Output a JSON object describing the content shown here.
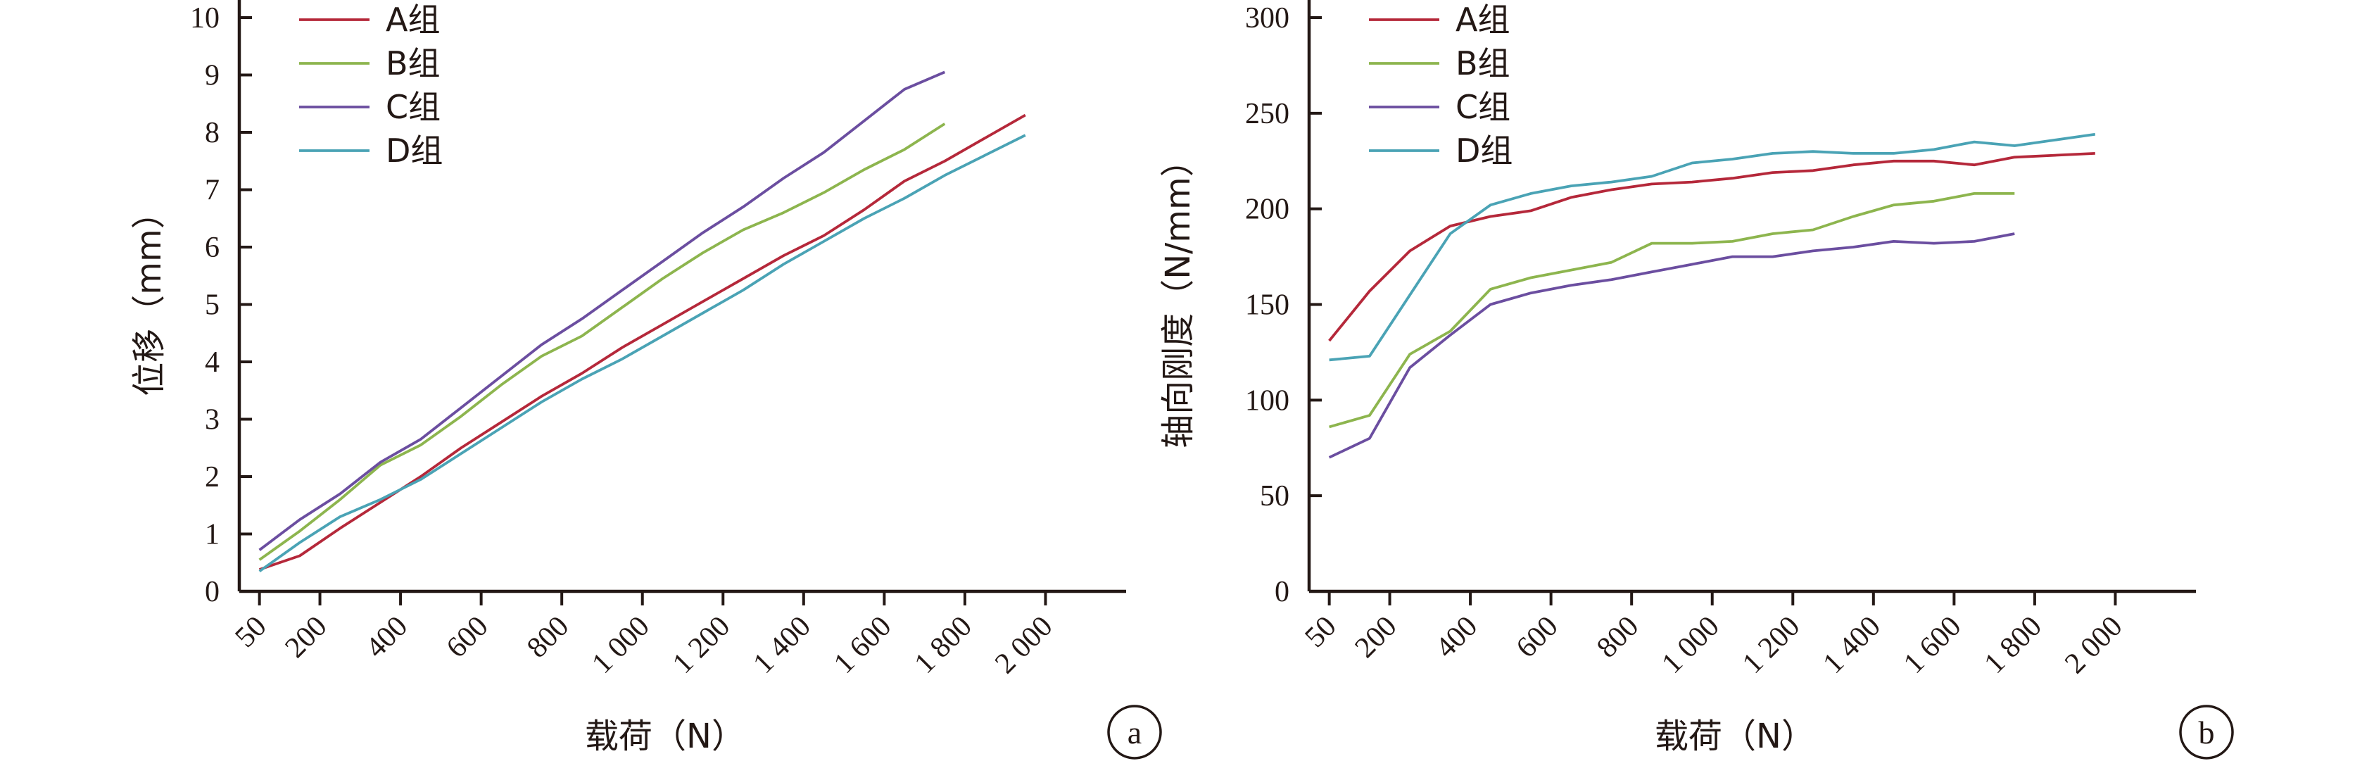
{
  "chart_data": [
    {
      "type": "line",
      "panel_label": "a",
      "xlabel": "载荷（N）",
      "ylabel": "位移（mm）",
      "x": [
        50,
        150,
        250,
        350,
        450,
        550,
        650,
        750,
        850,
        950,
        1050,
        1150,
        1250,
        1350,
        1450,
        1550,
        1650,
        1750,
        1850,
        1950
      ],
      "x_ticks": [
        50,
        200,
        400,
        600,
        800,
        1000,
        1200,
        1400,
        1600,
        1800,
        2000
      ],
      "x_tick_labels": [
        "50",
        "200",
        "400",
        "600",
        "800",
        "1 000",
        "1 200",
        "1 400",
        "1 600",
        "1 800",
        "2 000"
      ],
      "xlim": [
        0,
        2200
      ],
      "ylim": [
        0,
        10
      ],
      "y_ticks": [
        0,
        1,
        2,
        3,
        4,
        5,
        6,
        7,
        8,
        9,
        10
      ],
      "y_tick_labels": [
        "0",
        "1",
        "2",
        "3",
        "4",
        "5",
        "6",
        "7",
        "8",
        "9",
        "10"
      ],
      "legend_position": "top-left",
      "series": [
        {
          "name": "A组",
          "color": "#b5283a",
          "values": [
            0.38,
            0.62,
            1.1,
            1.55,
            2.0,
            2.5,
            2.95,
            3.4,
            3.8,
            4.25,
            4.65,
            5.05,
            5.45,
            5.85,
            6.2,
            6.65,
            7.15,
            7.5,
            7.9,
            8.3
          ]
        },
        {
          "name": "B组",
          "color": "#8db54e",
          "values": [
            0.55,
            1.05,
            1.6,
            2.2,
            2.55,
            3.05,
            3.6,
            4.1,
            4.45,
            4.95,
            5.45,
            5.9,
            6.3,
            6.6,
            6.95,
            7.35,
            7.7,
            8.15,
            null,
            null
          ]
        },
        {
          "name": "C组",
          "color": "#6b4ea0",
          "values": [
            0.72,
            1.25,
            1.7,
            2.25,
            2.65,
            3.2,
            3.75,
            4.3,
            4.75,
            5.25,
            5.75,
            6.25,
            6.7,
            7.2,
            7.65,
            8.2,
            8.75,
            9.05,
            null,
            null
          ]
        },
        {
          "name": "D组",
          "color": "#4aa3b5",
          "values": [
            0.35,
            0.85,
            1.3,
            1.6,
            1.95,
            2.4,
            2.85,
            3.3,
            3.7,
            4.05,
            4.45,
            4.85,
            5.25,
            5.7,
            6.1,
            6.5,
            6.85,
            7.25,
            7.6,
            7.95
          ]
        }
      ]
    },
    {
      "type": "line",
      "panel_label": "b",
      "xlabel": "载荷（N）",
      "ylabel": "轴向刚度（N/mm）",
      "x": [
        50,
        150,
        250,
        350,
        450,
        550,
        650,
        750,
        850,
        950,
        1050,
        1150,
        1250,
        1350,
        1450,
        1550,
        1650,
        1750,
        1850,
        1950
      ],
      "x_ticks": [
        50,
        200,
        400,
        600,
        800,
        1000,
        1200,
        1400,
        1600,
        1800,
        2000
      ],
      "x_tick_labels": [
        "50",
        "200",
        "400",
        "600",
        "800",
        "1 000",
        "1 200",
        "1 400",
        "1 600",
        "1 800",
        "2 000"
      ],
      "xlim": [
        0,
        2200
      ],
      "ylim": [
        0,
        300
      ],
      "y_ticks": [
        0,
        50,
        100,
        150,
        200,
        250,
        300
      ],
      "y_tick_labels": [
        "0",
        "50",
        "100",
        "150",
        "200",
        "250",
        "300"
      ],
      "legend_position": "top-left",
      "series": [
        {
          "name": "A组",
          "color": "#b5283a",
          "values": [
            131,
            157,
            178,
            191,
            196,
            199,
            206,
            210,
            213,
            214,
            216,
            219,
            220,
            223,
            225,
            225,
            223,
            227,
            228,
            229
          ]
        },
        {
          "name": "B组",
          "color": "#8db54e",
          "values": [
            86,
            92,
            124,
            136,
            158,
            164,
            168,
            172,
            182,
            182,
            183,
            187,
            189,
            196,
            202,
            204,
            208,
            208,
            null,
            null
          ]
        },
        {
          "name": "C组",
          "color": "#6b4ea0",
          "values": [
            70,
            80,
            117,
            134,
            150,
            156,
            160,
            163,
            167,
            171,
            175,
            175,
            178,
            180,
            183,
            182,
            183,
            187,
            null,
            null
          ]
        },
        {
          "name": "D组",
          "color": "#4aa3b5",
          "values": [
            121,
            123,
            155,
            187,
            202,
            208,
            212,
            214,
            217,
            224,
            226,
            229,
            230,
            229,
            229,
            231,
            235,
            233,
            236,
            239
          ]
        }
      ]
    }
  ]
}
